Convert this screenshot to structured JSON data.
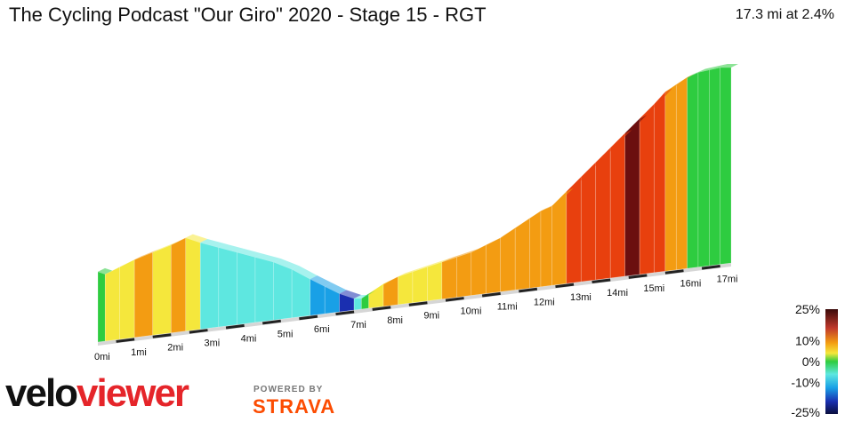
{
  "header": {
    "title": "The Cycling Podcast \"Our Giro\" 2020 - Stage 15 - RGT",
    "summary": "17.3 mi at 2.4%"
  },
  "brand": {
    "velo": "velo",
    "viewer": "viewer",
    "powered_by": "POWERED BY",
    "strava": "STRAVA"
  },
  "chart_data": {
    "type": "area",
    "title": "The Cycling Podcast \"Our Giro\" 2020 - Stage 15 - RGT",
    "xlabel": "",
    "ylabel": "",
    "x_ticks": [
      "0mi",
      "1mi",
      "2mi",
      "3mi",
      "4mi",
      "5mi",
      "6mi",
      "7mi",
      "8mi",
      "9mi",
      "10mi",
      "11mi",
      "12mi",
      "13mi",
      "14mi",
      "15mi",
      "16mi",
      "17mi"
    ],
    "distance_mi": [
      0,
      0.2,
      0.6,
      1.0,
      1.5,
      2.0,
      2.4,
      2.8,
      3.3,
      3.8,
      4.3,
      4.8,
      5.3,
      5.8,
      6.2,
      6.6,
      7.0,
      7.2,
      7.4,
      7.8,
      8.2,
      8.6,
      9.0,
      9.4,
      9.8,
      10.2,
      10.6,
      11.0,
      11.4,
      11.8,
      12.1,
      12.4,
      12.8,
      13.2,
      13.6,
      14.0,
      14.4,
      14.8,
      15.2,
      15.5,
      15.8,
      16.1,
      16.4,
      16.7,
      17.0,
      17.3
    ],
    "relative_elevation": [
      2,
      1,
      4,
      7,
      10,
      13,
      16,
      14,
      12,
      10,
      8,
      6,
      3,
      -1,
      -4,
      -7,
      -9,
      -9,
      -7,
      -3,
      0,
      2,
      4,
      6,
      8,
      10,
      13,
      16,
      20,
      24,
      27,
      29,
      35,
      41,
      47,
      53,
      59,
      65,
      71,
      76,
      79,
      82,
      84,
      85,
      86,
      86
    ],
    "gradient_pct": [
      -2,
      3,
      5,
      6,
      5,
      7,
      3,
      -6,
      -5,
      -4,
      -4,
      -6,
      -5,
      -8,
      -9,
      -12,
      -6,
      0,
      5,
      7,
      4,
      3,
      5,
      6,
      7,
      7,
      6,
      8,
      9,
      6,
      7,
      9,
      11,
      12,
      13,
      12,
      14,
      11,
      13,
      9,
      6,
      1,
      1,
      0,
      0,
      0
    ],
    "legend": {
      "ticks": [
        "25%",
        "10%",
        "0%",
        "-10%",
        "-25%"
      ],
      "values": [
        25,
        10,
        0,
        -10,
        -25
      ],
      "placement": "bottom-right"
    },
    "colors": {
      "steep_climb": "#6b0f0f",
      "hard_climb": "#e8400e",
      "climb": "#f39c12",
      "moderate": "#f5e73c",
      "flat": "#2ecc40",
      "light_descent": "#5ee7e0",
      "descent": "#19a0e6",
      "steep_descent": "#1a2fb0",
      "very_steep_descent": "#0a0e3d"
    }
  }
}
